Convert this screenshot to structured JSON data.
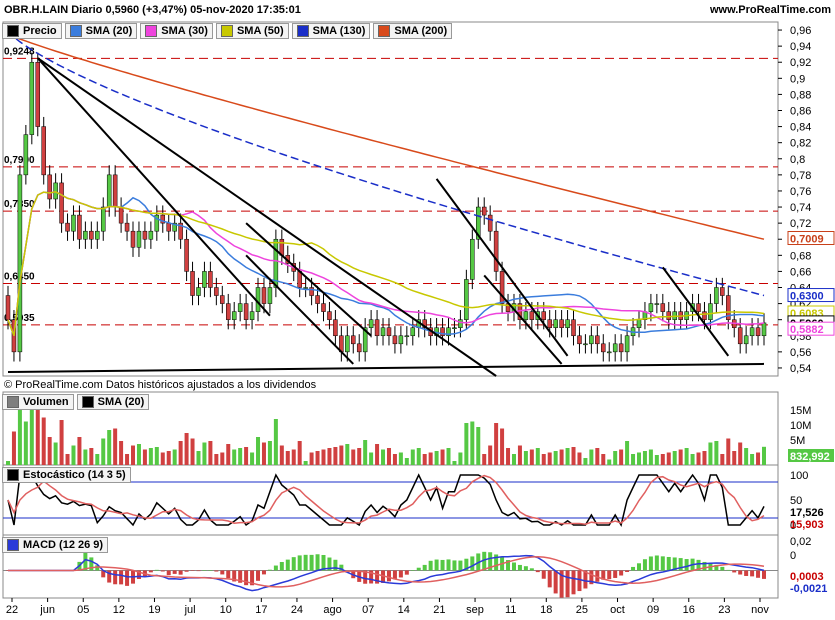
{
  "header": {
    "title": "OBR.H.LAIN Diario 0,5960 (+3,47%) 05-nov-2020 17:35:01",
    "site": "www.ProRealTime.com"
  },
  "price_legend": [
    {
      "label": "Precio",
      "color": "#000000"
    },
    {
      "label": "SMA (20)",
      "color": "#3b7ddd"
    },
    {
      "label": "SMA (30)",
      "color": "#ee44dd"
    },
    {
      "label": "SMA (50)",
      "color": "#c8c800"
    },
    {
      "label": "SMA (130)",
      "color": "#1a2ec8"
    },
    {
      "label": "SMA (200)",
      "color": "#d84a1b"
    }
  ],
  "volume_legend": [
    {
      "label": "Volumen",
      "color": "#7f7f7f"
    },
    {
      "label": "SMA (20)",
      "color": "#000000"
    }
  ],
  "stoch_legend": [
    {
      "label": "Estocástico (14 3 5)",
      "color": "#000000"
    }
  ],
  "macd_legend": [
    {
      "label": "MACD (12 26 9)",
      "color": "#2a3ad8"
    }
  ],
  "footnote": "© ProRealTime.com Datos históricos ajustados a los dividendos",
  "chart_data": {
    "type": "candlestick",
    "price_axis": {
      "ticks": [
        "0,96",
        "0,94",
        "0,92",
        "0,9",
        "0,88",
        "0,86",
        "0,84",
        "0,82",
        "0,8",
        "0,78",
        "0,76",
        "0,74",
        "0,72",
        "0,7",
        "0,68",
        "0,66",
        "0,64",
        "0,62",
        "0,6",
        "0,58",
        "0,56",
        "0,54"
      ],
      "min": 0.53,
      "max": 0.97
    },
    "levels": [
      {
        "value": 0.9248,
        "label": "0,9248"
      },
      {
        "value": 0.79,
        "label": "0,7900"
      },
      {
        "value": 0.735,
        "label": "0,7350"
      },
      {
        "value": 0.645,
        "label": "0,6450"
      },
      {
        "value": 0.5935,
        "label": "0,5935"
      }
    ],
    "price_badges": [
      {
        "value": 0.7009,
        "label": "0,7009",
        "color": "#c8401a"
      },
      {
        "value": 0.63,
        "label": "0,6300",
        "color": "#1a2ec8"
      },
      {
        "value": 0.6083,
        "label": "0,6083",
        "color": "#c8c800"
      },
      {
        "value": 0.596,
        "label": "0,5960",
        "color": "#000000"
      },
      {
        "value": 0.5882,
        "label": "0,5882",
        "color": "#ee44dd"
      }
    ],
    "x_labels": [
      "22",
      "jun",
      "05",
      "12",
      "19",
      "jul",
      "10",
      "17",
      "24",
      "ago",
      "07",
      "14",
      "21",
      "sep",
      "11",
      "18",
      "25",
      "oct",
      "09",
      "16",
      "23",
      "nov"
    ],
    "close": [
      0.6,
      0.56,
      0.78,
      0.83,
      0.92,
      0.84,
      0.78,
      0.75,
      0.77,
      0.72,
      0.71,
      0.73,
      0.7,
      0.71,
      0.7,
      0.71,
      0.74,
      0.78,
      0.74,
      0.72,
      0.71,
      0.69,
      0.71,
      0.7,
      0.71,
      0.73,
      0.72,
      0.71,
      0.72,
      0.7,
      0.66,
      0.63,
      0.64,
      0.66,
      0.64,
      0.63,
      0.62,
      0.6,
      0.61,
      0.62,
      0.6,
      0.61,
      0.64,
      0.62,
      0.64,
      0.7,
      0.68,
      0.67,
      0.66,
      0.64,
      0.64,
      0.63,
      0.62,
      0.61,
      0.6,
      0.58,
      0.56,
      0.58,
      0.57,
      0.56,
      0.59,
      0.6,
      0.58,
      0.59,
      0.58,
      0.57,
      0.58,
      0.58,
      0.59,
      0.6,
      0.59,
      0.58,
      0.59,
      0.58,
      0.59,
      0.59,
      0.6,
      0.65,
      0.7,
      0.74,
      0.73,
      0.71,
      0.66,
      0.62,
      0.61,
      0.62,
      0.6,
      0.61,
      0.6,
      0.61,
      0.6,
      0.59,
      0.6,
      0.59,
      0.6,
      0.58,
      0.57,
      0.57,
      0.58,
      0.57,
      0.56,
      0.56,
      0.57,
      0.56,
      0.58,
      0.59,
      0.6,
      0.61,
      0.62,
      0.62,
      0.61,
      0.6,
      0.61,
      0.6,
      0.61,
      0.62,
      0.61,
      0.6,
      0.62,
      0.64,
      0.63,
      0.6,
      0.59,
      0.57,
      0.58,
      0.59,
      0.58,
      0.596
    ],
    "volume_axis": {
      "ticks": [
        "15M",
        "10M",
        "5M"
      ],
      "badge": "832,992"
    },
    "stoch_axis": {
      "ticks": [
        "100",
        "50",
        "0"
      ],
      "badges": [
        "17,526",
        "15,903"
      ]
    },
    "macd_axis": {
      "ticks": [
        "0,02",
        "0"
      ],
      "badges": [
        "0,0003",
        "-0,0021"
      ]
    }
  }
}
